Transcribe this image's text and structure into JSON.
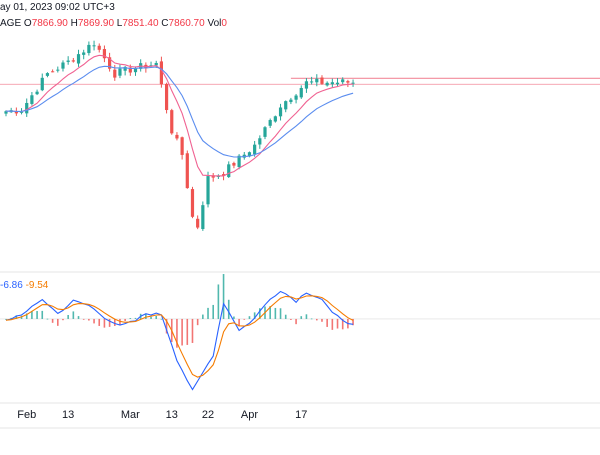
{
  "header": {
    "date_fragment": "ay 01, 2023 09:02 UTC+3",
    "label_fragment": "AGE",
    "open_label": "O",
    "open_value": "7866.90",
    "high_label": "H",
    "high_value": "7869.90",
    "low_label": "L",
    "low_value": "7851.40",
    "close_label": "C",
    "close_value": "7860.70",
    "vol_label": "Vol",
    "vol_value": "0"
  },
  "macd_header": {
    "macd_value": "-6.86",
    "signal_value": "-9.54"
  },
  "colors": {
    "up": "#26a69a",
    "down": "#ef5350",
    "ma_fast": "#f06292",
    "ma_slow": "#5b8def",
    "macd_line": "#2962ff",
    "signal_line": "#f57c00",
    "hline": "#f28b9b",
    "grid": "#e6e6e6",
    "axis_text": "#131722"
  },
  "chart_data": [
    {
      "type": "candlestick",
      "subtype": "price",
      "x_labels": [
        "Feb",
        "13",
        "Mar",
        "13",
        "22",
        "Apr",
        "17"
      ],
      "close_key_points": [
        {
          "date": "2023-01-26",
          "value": 7765
        },
        {
          "date": "2023-01-31",
          "value": 7770
        },
        {
          "date": "2023-02-07",
          "value": 7890
        },
        {
          "date": "2023-02-13",
          "value": 7930
        },
        {
          "date": "2023-02-20",
          "value": 7995
        },
        {
          "date": "2023-02-24",
          "value": 7890
        },
        {
          "date": "2023-03-01",
          "value": 7905
        },
        {
          "date": "2023-03-08",
          "value": 7925
        },
        {
          "date": "2023-03-13",
          "value": 7700
        },
        {
          "date": "2023-03-15",
          "value": 7620
        },
        {
          "date": "2023-03-17",
          "value": 7410
        },
        {
          "date": "2023-03-20",
          "value": 7380
        },
        {
          "date": "2023-03-22",
          "value": 7540
        },
        {
          "date": "2023-03-27",
          "value": 7560
        },
        {
          "date": "2023-03-29",
          "value": 7590
        },
        {
          "date": "2023-04-04",
          "value": 7650
        },
        {
          "date": "2023-04-11",
          "value": 7785
        },
        {
          "date": "2023-04-14",
          "value": 7830
        },
        {
          "date": "2023-04-18",
          "value": 7860
        },
        {
          "date": "2023-04-25",
          "value": 7862
        }
      ],
      "horizontal_lines": [
        {
          "value": 7875,
          "from_date": "2023-04-13"
        },
        {
          "value": 7855
        }
      ],
      "moving_averages": [
        "fast",
        "slow"
      ],
      "ylim": [
        7260,
        8020
      ]
    },
    {
      "type": "macd",
      "macd_value": -6.86,
      "signal_value": -9.54,
      "macd_key_points": [
        {
          "date": "2023-01-26",
          "value": -2
        },
        {
          "date": "2023-02-01",
          "value": 8
        },
        {
          "date": "2023-02-06",
          "value": 22
        },
        {
          "date": "2023-02-09",
          "value": 6
        },
        {
          "date": "2023-02-14",
          "value": 20
        },
        {
          "date": "2023-02-17",
          "value": 15
        },
        {
          "date": "2023-02-22",
          "value": 2
        },
        {
          "date": "2023-02-27",
          "value": -8
        },
        {
          "date": "2023-03-02",
          "value": -2
        },
        {
          "date": "2023-03-06",
          "value": 6
        },
        {
          "date": "2023-03-09",
          "value": 5
        },
        {
          "date": "2023-03-14",
          "value": -45
        },
        {
          "date": "2023-03-17",
          "value": -80
        },
        {
          "date": "2023-03-20",
          "value": -70
        },
        {
          "date": "2023-03-23",
          "value": -40
        },
        {
          "date": "2023-03-27",
          "value": 18
        },
        {
          "date": "2023-03-30",
          "value": -12
        },
        {
          "date": "2023-04-03",
          "value": -5
        },
        {
          "date": "2023-04-07",
          "value": 22
        },
        {
          "date": "2023-04-11",
          "value": 32
        },
        {
          "date": "2023-04-14",
          "value": 20
        },
        {
          "date": "2023-04-18",
          "value": 30
        },
        {
          "date": "2023-04-21",
          "value": 22
        },
        {
          "date": "2023-04-25",
          "value": 6
        },
        {
          "date": "2023-05-01",
          "value": -7
        }
      ]
    }
  ]
}
